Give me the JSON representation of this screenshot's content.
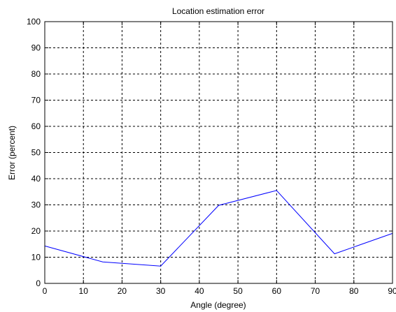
{
  "chart_data": {
    "type": "line",
    "title": "Location estimation error",
    "xlabel": "Angle (degree)",
    "ylabel": "Error (percent)",
    "xlim": [
      0,
      90
    ],
    "ylim": [
      0,
      100
    ],
    "xticks": [
      0,
      10,
      20,
      30,
      40,
      50,
      60,
      70,
      80,
      90
    ],
    "yticks": [
      0,
      10,
      20,
      30,
      40,
      50,
      60,
      70,
      80,
      90,
      100
    ],
    "grid": true,
    "series": [
      {
        "color": "#0000ff",
        "x": [
          0,
          15,
          30,
          45,
          60,
          75,
          90
        ],
        "y": [
          14.3,
          8.2,
          6.6,
          29.8,
          35.5,
          11.3,
          19.1
        ]
      }
    ]
  }
}
